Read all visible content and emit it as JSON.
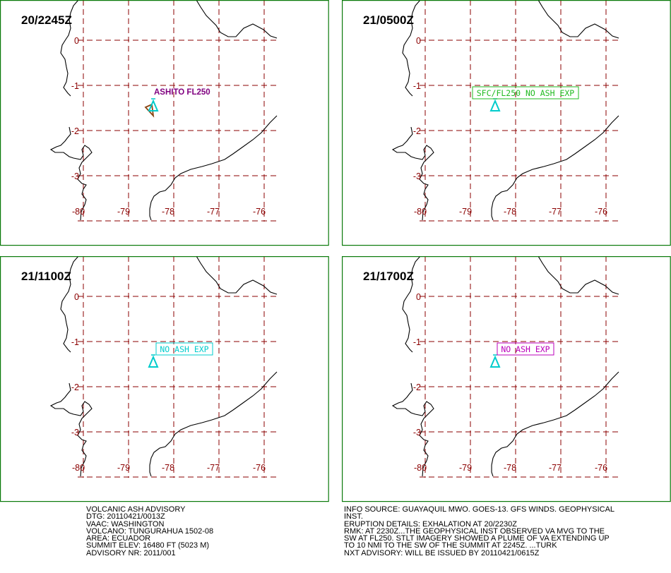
{
  "panels": [
    {
      "time": "20/2245Z",
      "label": "ASHITO FL250",
      "label_boxed": false,
      "label_color": "#800080",
      "ash_area": true
    },
    {
      "time": "21/0500Z",
      "label": "SFC/FL250 NO ASH EXP",
      "label_boxed": true,
      "label_color": "#22bb22",
      "ash_area": false
    },
    {
      "time": "21/1100Z",
      "label": "NO ASH EXP",
      "label_boxed": true,
      "label_color": "#00cccc",
      "ash_area": false
    },
    {
      "time": "21/1700Z",
      "label": "NO ASH EXP",
      "label_boxed": true,
      "label_color": "#bb00bb",
      "ash_area": false
    }
  ],
  "grid": {
    "lon_labels": [
      "-80",
      "-79",
      "-78",
      "-77",
      "-76"
    ],
    "lat_labels": [
      "0",
      "-1",
      "-2",
      "-3"
    ]
  },
  "volcano_icon": "volcano-triangle-icon",
  "colors": {
    "frame": "#0a7a0a",
    "grid": "#8b0000",
    "volcano": "#00cccc",
    "ash_outline": "#8b4513"
  },
  "advisory_left": [
    "VOLCANIC ASH ADVISORY",
    "DTG: 20110421/0013Z",
    "VAAC: WASHINGTON",
    "VOLCANO: TUNGURAHUA 1502-08",
    "AREA: ECUADOR",
    "SUMMIT ELEV: 16480 FT (5023 M)",
    "ADVISORY NR: 2011/001"
  ],
  "advisory_right": [
    "INFO SOURCE: GUAYAQUIL MWO. GOES-13. GFS WINDS. GEOPHYSICAL",
    "INST.",
    "ERUPTION DETAILS: EXHALATION AT 20/2230Z",
    "RMK: AT 2230Z...THE GEOPHYSICAL INST OBSERVED VA MVG TO THE",
    "SW AT FL250. STLT IMAGERY SHOWED A PLUME OF VA EXTENDING UP",
    "TO 10 NMI TO THE SW OF THE SUMMIT AT 2245Z. ...TURK",
    "NXT ADVISORY: WILL BE ISSUED BY 20110421/0615Z"
  ]
}
